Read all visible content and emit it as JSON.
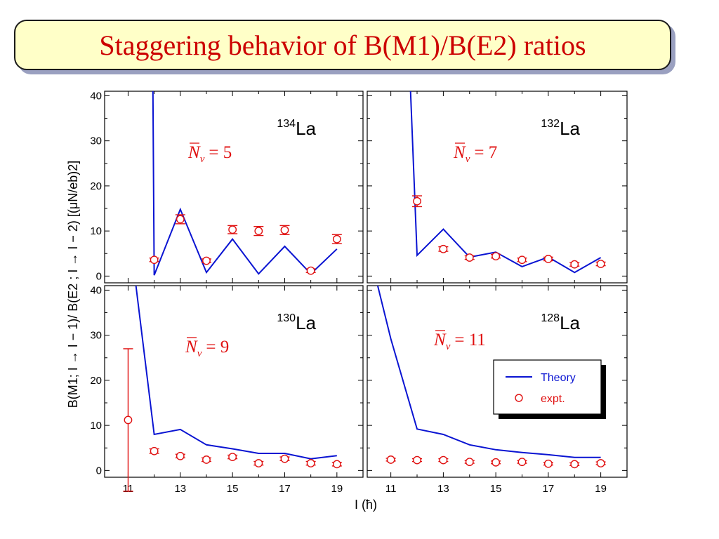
{
  "title": "Staggering behavior of B(M1)/B(E2) ratios",
  "colors": {
    "theory": "#0a14d2",
    "expt": "#e01010",
    "panel_label": "#e01010",
    "title": "#cc0000"
  },
  "figure": {
    "ylabel": "B(M1; I → I − 1)/ B(E2 ; I → I − 2)  [(μN/eb)2]",
    "xlabel": "I (ħ)"
  },
  "legend": {
    "theory": "Theory",
    "expt": "expt."
  },
  "chart_data": [
    {
      "type": "line",
      "panel": "top-left",
      "nucleus": {
        "mass": "134",
        "element": "La"
      },
      "label": {
        "sym": "N",
        "sub": "ν",
        "eq": "= 5"
      },
      "xlim": [
        10.1,
        20.0
      ],
      "ylim": [
        -1.5,
        41
      ],
      "xticks": [
        11,
        13,
        15,
        17,
        19
      ],
      "yticks": [
        0,
        10,
        20,
        30,
        40
      ],
      "series": [
        {
          "name": "Theory",
          "x": [
            11.95,
            12,
            13,
            14,
            15,
            16,
            17,
            18,
            19
          ],
          "y": [
            41,
            0.2,
            14.8,
            0.8,
            8.2,
            0.5,
            6.6,
            0.5,
            6.0
          ]
        },
        {
          "name": "expt.",
          "x": [
            12,
            13,
            14,
            15,
            16,
            17,
            18,
            19
          ],
          "y": [
            3.6,
            12.6,
            3.4,
            10.3,
            10.0,
            10.2,
            1.2,
            8.2
          ],
          "err": [
            0.4,
            1.0,
            0.4,
            0.9,
            1.0,
            1.0,
            0.4,
            1.0
          ]
        }
      ]
    },
    {
      "type": "line",
      "panel": "top-right",
      "nucleus": {
        "mass": "132",
        "element": "La"
      },
      "label": {
        "sym": "N",
        "sub": "ν",
        "eq": "= 7"
      },
      "xlim": [
        10.1,
        20.0
      ],
      "ylim": [
        -1.5,
        41
      ],
      "xticks": [
        11,
        13,
        15,
        17,
        19
      ],
      "yticks": [
        0,
        10,
        20,
        30,
        40
      ],
      "series": [
        {
          "name": "Theory",
          "x": [
            11.75,
            12,
            13,
            14,
            15,
            16,
            17,
            18,
            19
          ],
          "y": [
            41,
            4.6,
            10.4,
            4.2,
            5.3,
            2.1,
            4.2,
            0.8,
            4.1
          ]
        },
        {
          "name": "expt.",
          "x": [
            12,
            13,
            14,
            15,
            16,
            17,
            18,
            19
          ],
          "y": [
            16.6,
            6.0,
            4.1,
            4.4,
            3.6,
            3.8,
            2.6,
            2.7
          ],
          "err": [
            1.2,
            0.5,
            0.4,
            0.4,
            0.4,
            0.4,
            0.4,
            0.4
          ]
        }
      ]
    },
    {
      "type": "line",
      "panel": "bottom-left",
      "nucleus": {
        "mass": "130",
        "element": "La"
      },
      "label": {
        "sym": "N",
        "sub": "ν",
        "eq": "= 9"
      },
      "xlim": [
        10.1,
        20.0
      ],
      "ylim": [
        -1.5,
        41
      ],
      "xticks": [
        11,
        13,
        15,
        17,
        19
      ],
      "yticks": [
        0,
        10,
        20,
        30,
        40
      ],
      "series": [
        {
          "name": "Theory",
          "x": [
            11.3,
            12,
            13,
            14,
            15,
            16,
            17,
            18,
            19
          ],
          "y": [
            41,
            8.0,
            9.1,
            5.7,
            4.8,
            3.8,
            3.8,
            2.6,
            3.3
          ]
        },
        {
          "name": "expt.",
          "x": [
            11,
            12,
            13,
            14,
            15,
            16,
            17,
            18,
            19
          ],
          "y": [
            11.2,
            4.3,
            3.2,
            2.4,
            3.0,
            1.6,
            2.6,
            1.6,
            1.4
          ],
          "err": [
            15.8,
            0.5,
            0.4,
            0.4,
            0.4,
            0.4,
            0.4,
            0.4,
            0.4
          ]
        }
      ]
    },
    {
      "type": "line",
      "panel": "bottom-right",
      "nucleus": {
        "mass": "128",
        "element": "La"
      },
      "label": {
        "sym": "N",
        "sub": "ν",
        "eq": "= 11"
      },
      "xlim": [
        10.1,
        20.0
      ],
      "ylim": [
        -1.5,
        41
      ],
      "xticks": [
        11,
        13,
        15,
        17,
        19
      ],
      "yticks": [
        0,
        10,
        20,
        30,
        40
      ],
      "series": [
        {
          "name": "Theory",
          "x": [
            10.5,
            11,
            12,
            13,
            14,
            15,
            16,
            17,
            18,
            19
          ],
          "y": [
            41,
            29.2,
            9.2,
            8.0,
            5.7,
            4.6,
            4.0,
            3.5,
            2.9,
            2.9
          ]
        },
        {
          "name": "expt.",
          "x": [
            11,
            12,
            13,
            14,
            15,
            16,
            17,
            18,
            19
          ],
          "y": [
            2.4,
            2.3,
            2.3,
            1.9,
            1.8,
            1.9,
            1.5,
            1.4,
            1.6
          ],
          "err": [
            0.3,
            0.3,
            0.3,
            0.3,
            0.3,
            0.3,
            0.3,
            0.3,
            0.3
          ]
        }
      ]
    }
  ]
}
